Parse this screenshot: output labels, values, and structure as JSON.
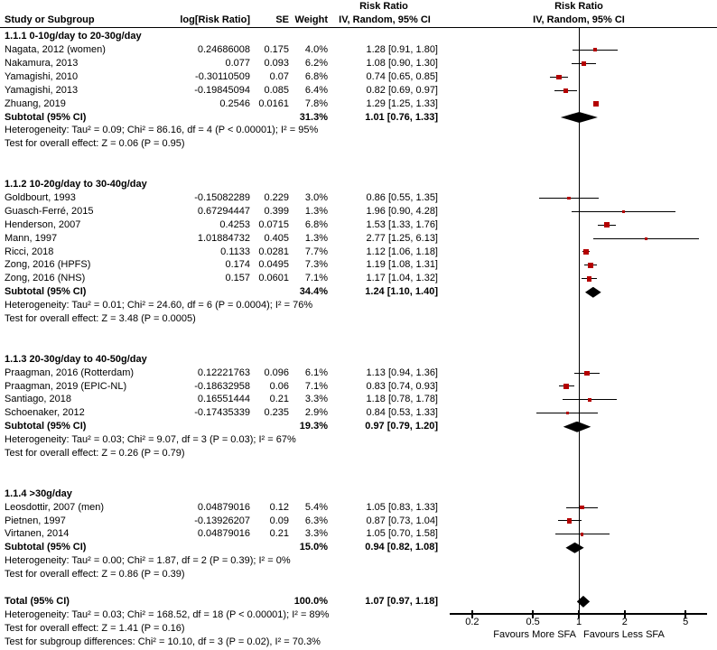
{
  "header": {
    "col_study": "Study or Subgroup",
    "col_logrr": "log[Risk Ratio]",
    "col_se": "SE",
    "col_weight": "Weight",
    "col_rr_line1": "Risk Ratio",
    "col_rr_line2": "IV, Random, 95% CI",
    "plot_line1": "Risk Ratio",
    "plot_line2": "IV, Random, 95% CI"
  },
  "colors": {
    "marker": "#b40000",
    "diamond": "#000000",
    "line": "#000000",
    "text": "#000000",
    "background": "#ffffff"
  },
  "chart_data": {
    "type": "scatter",
    "variant": "forest-plot-meta-analysis",
    "x_scale": "log",
    "x_ticks": [
      0.2,
      0.5,
      1,
      2,
      5
    ],
    "x_range": [
      0.14,
      6.9
    ],
    "xlabel_left": "Favours More SFA",
    "xlabel_right": "Favours Less SFA",
    "effect_measure": "Risk Ratio, IV, Random, 95% CI",
    "groups": [
      {
        "title": "1.1.1 0-10g/day to 20-30g/day",
        "studies": [
          {
            "name": "Nagata, 2012 (women)",
            "log_rr": "0.24686008",
            "se": "0.175",
            "weight": "4.0%",
            "w": 4.0,
            "ci_text": "1.28 [0.91, 1.80]",
            "rr": 1.28,
            "lo": 0.91,
            "hi": 1.8
          },
          {
            "name": "Nakamura, 2013",
            "log_rr": "0.077",
            "se": "0.093",
            "weight": "6.2%",
            "w": 6.2,
            "ci_text": "1.08 [0.90, 1.30]",
            "rr": 1.08,
            "lo": 0.9,
            "hi": 1.3
          },
          {
            "name": "Yamagishi, 2010",
            "log_rr": "-0.30110509",
            "se": "0.07",
            "weight": "6.8%",
            "w": 6.8,
            "ci_text": "0.74 [0.65, 0.85]",
            "rr": 0.74,
            "lo": 0.65,
            "hi": 0.85
          },
          {
            "name": "Yamagishi, 2013",
            "log_rr": "-0.19845094",
            "se": "0.085",
            "weight": "6.4%",
            "w": 6.4,
            "ci_text": "0.82 [0.69, 0.97]",
            "rr": 0.82,
            "lo": 0.69,
            "hi": 0.97
          },
          {
            "name": "Zhuang, 2019",
            "log_rr": "0.2546",
            "se": "0.0161",
            "weight": "7.8%",
            "w": 7.8,
            "ci_text": "1.29 [1.25, 1.33]",
            "rr": 1.29,
            "lo": 1.25,
            "hi": 1.33
          }
        ],
        "subtotal": {
          "label": "Subtotal (95% CI)",
          "weight": "31.3%",
          "ci_text": "1.01 [0.76, 1.33]",
          "rr": 1.01,
          "lo": 0.76,
          "hi": 1.33
        },
        "heterogeneity": "Heterogeneity: Tau² = 0.09; Chi² = 86.16, df = 4 (P < 0.00001); I² = 95%",
        "test": "Test for overall effect: Z = 0.06 (P = 0.95)"
      },
      {
        "title": "1.1.2 10-20g/day to 30-40g/day",
        "studies": [
          {
            "name": "Goldbourt, 1993",
            "log_rr": "-0.15082289",
            "se": "0.229",
            "weight": "3.0%",
            "w": 3.0,
            "ci_text": "0.86 [0.55, 1.35]",
            "rr": 0.86,
            "lo": 0.55,
            "hi": 1.35
          },
          {
            "name": "Guasch-Ferré, 2015",
            "log_rr": "0.67294447",
            "se": "0.399",
            "weight": "1.3%",
            "w": 1.3,
            "ci_text": "1.96 [0.90, 4.28]",
            "rr": 1.96,
            "lo": 0.9,
            "hi": 4.28
          },
          {
            "name": "Henderson, 2007",
            "log_rr": "0.4253",
            "se": "0.0715",
            "weight": "6.8%",
            "w": 6.8,
            "ci_text": "1.53 [1.33, 1.76]",
            "rr": 1.53,
            "lo": 1.33,
            "hi": 1.76
          },
          {
            "name": "Mann, 1997",
            "log_rr": "1.01884732",
            "se": "0.405",
            "weight": "1.3%",
            "w": 1.3,
            "ci_text": "2.77 [1.25, 6.13]",
            "rr": 2.77,
            "lo": 1.25,
            "hi": 6.13
          },
          {
            "name": "Ricci, 2018",
            "log_rr": "0.1133",
            "se": "0.0281",
            "weight": "7.7%",
            "w": 7.7,
            "ci_text": "1.12 [1.06, 1.18]",
            "rr": 1.12,
            "lo": 1.06,
            "hi": 1.18
          },
          {
            "name": "Zong, 2016 (HPFS)",
            "log_rr": "0.174",
            "se": "0.0495",
            "weight": "7.3%",
            "w": 7.3,
            "ci_text": "1.19 [1.08, 1.31]",
            "rr": 1.19,
            "lo": 1.08,
            "hi": 1.31
          },
          {
            "name": "Zong, 2016 (NHS)",
            "log_rr": "0.157",
            "se": "0.0601",
            "weight": "7.1%",
            "w": 7.1,
            "ci_text": "1.17 [1.04, 1.32]",
            "rr": 1.17,
            "lo": 1.04,
            "hi": 1.32
          }
        ],
        "subtotal": {
          "label": "Subtotal (95% CI)",
          "weight": "34.4%",
          "ci_text": "1.24 [1.10, 1.40]",
          "rr": 1.24,
          "lo": 1.1,
          "hi": 1.4
        },
        "heterogeneity": "Heterogeneity: Tau² = 0.01; Chi² = 24.60, df = 6 (P = 0.0004); I² = 76%",
        "test": "Test for overall effect: Z = 3.48 (P = 0.0005)"
      },
      {
        "title": "1.1.3 20-30g/day to 40-50g/day",
        "studies": [
          {
            "name": "Praagman, 2016 (Rotterdam)",
            "log_rr": "0.12221763",
            "se": "0.096",
            "weight": "6.1%",
            "w": 6.1,
            "ci_text": "1.13 [0.94, 1.36]",
            "rr": 1.13,
            "lo": 0.94,
            "hi": 1.36
          },
          {
            "name": "Praagman, 2019 (EPIC-NL)",
            "log_rr": "-0.18632958",
            "se": "0.06",
            "weight": "7.1%",
            "w": 7.1,
            "ci_text": "0.83 [0.74, 0.93]",
            "rr": 0.83,
            "lo": 0.74,
            "hi": 0.93
          },
          {
            "name": "Santiago, 2018",
            "log_rr": "0.16551444",
            "se": "0.21",
            "weight": "3.3%",
            "w": 3.3,
            "ci_text": "1.18 [0.78, 1.78]",
            "rr": 1.18,
            "lo": 0.78,
            "hi": 1.78
          },
          {
            "name": "Schoenaker, 2012",
            "log_rr": "-0.17435339",
            "se": "0.235",
            "weight": "2.9%",
            "w": 2.9,
            "ci_text": "0.84 [0.53, 1.33]",
            "rr": 0.84,
            "lo": 0.53,
            "hi": 1.33
          }
        ],
        "subtotal": {
          "label": "Subtotal (95% CI)",
          "weight": "19.3%",
          "ci_text": "0.97 [0.79, 1.20]",
          "rr": 0.97,
          "lo": 0.79,
          "hi": 1.2
        },
        "heterogeneity": "Heterogeneity: Tau² = 0.03; Chi² = 9.07, df = 3 (P = 0.03); I² = 67%",
        "test": "Test for overall effect: Z = 0.26 (P = 0.79)"
      },
      {
        "title": "1.1.4 >30g/day",
        "studies": [
          {
            "name": "Leosdottir, 2007 (men)",
            "log_rr": "0.04879016",
            "se": "0.12",
            "weight": "5.4%",
            "w": 5.4,
            "ci_text": "1.05 [0.83, 1.33]",
            "rr": 1.05,
            "lo": 0.83,
            "hi": 1.33
          },
          {
            "name": "Pietnen, 1997",
            "log_rr": "-0.13926207",
            "se": "0.09",
            "weight": "6.3%",
            "w": 6.3,
            "ci_text": "0.87 [0.73, 1.04]",
            "rr": 0.87,
            "lo": 0.73,
            "hi": 1.04
          },
          {
            "name": "Virtanen, 2014",
            "log_rr": "0.04879016",
            "se": "0.21",
            "weight": "3.3%",
            "w": 3.3,
            "ci_text": "1.05 [0.70, 1.58]",
            "rr": 1.05,
            "lo": 0.7,
            "hi": 1.58
          }
        ],
        "subtotal": {
          "label": "Subtotal (95% CI)",
          "weight": "15.0%",
          "ci_text": "0.94 [0.82, 1.08]",
          "rr": 0.94,
          "lo": 0.82,
          "hi": 1.08
        },
        "heterogeneity": "Heterogeneity: Tau² = 0.00; Chi² = 1.87, df = 2 (P = 0.39); I² = 0%",
        "test": "Test for overall effect: Z = 0.86 (P = 0.39)"
      }
    ],
    "total": {
      "label": "Total (95% CI)",
      "weight": "100.0%",
      "ci_text": "1.07 [0.97, 1.18]",
      "rr": 1.07,
      "lo": 0.97,
      "hi": 1.18,
      "heterogeneity": "Heterogeneity: Tau² = 0.03; Chi² = 168.52, df = 18 (P < 0.00001); I² = 89%",
      "test": "Test for overall effect: Z = 1.41 (P = 0.16)",
      "subgroup_test": "Test for subgroup differences: Chi² = 10.10, df = 3 (P = 0.02), I² = 70.3%"
    }
  }
}
